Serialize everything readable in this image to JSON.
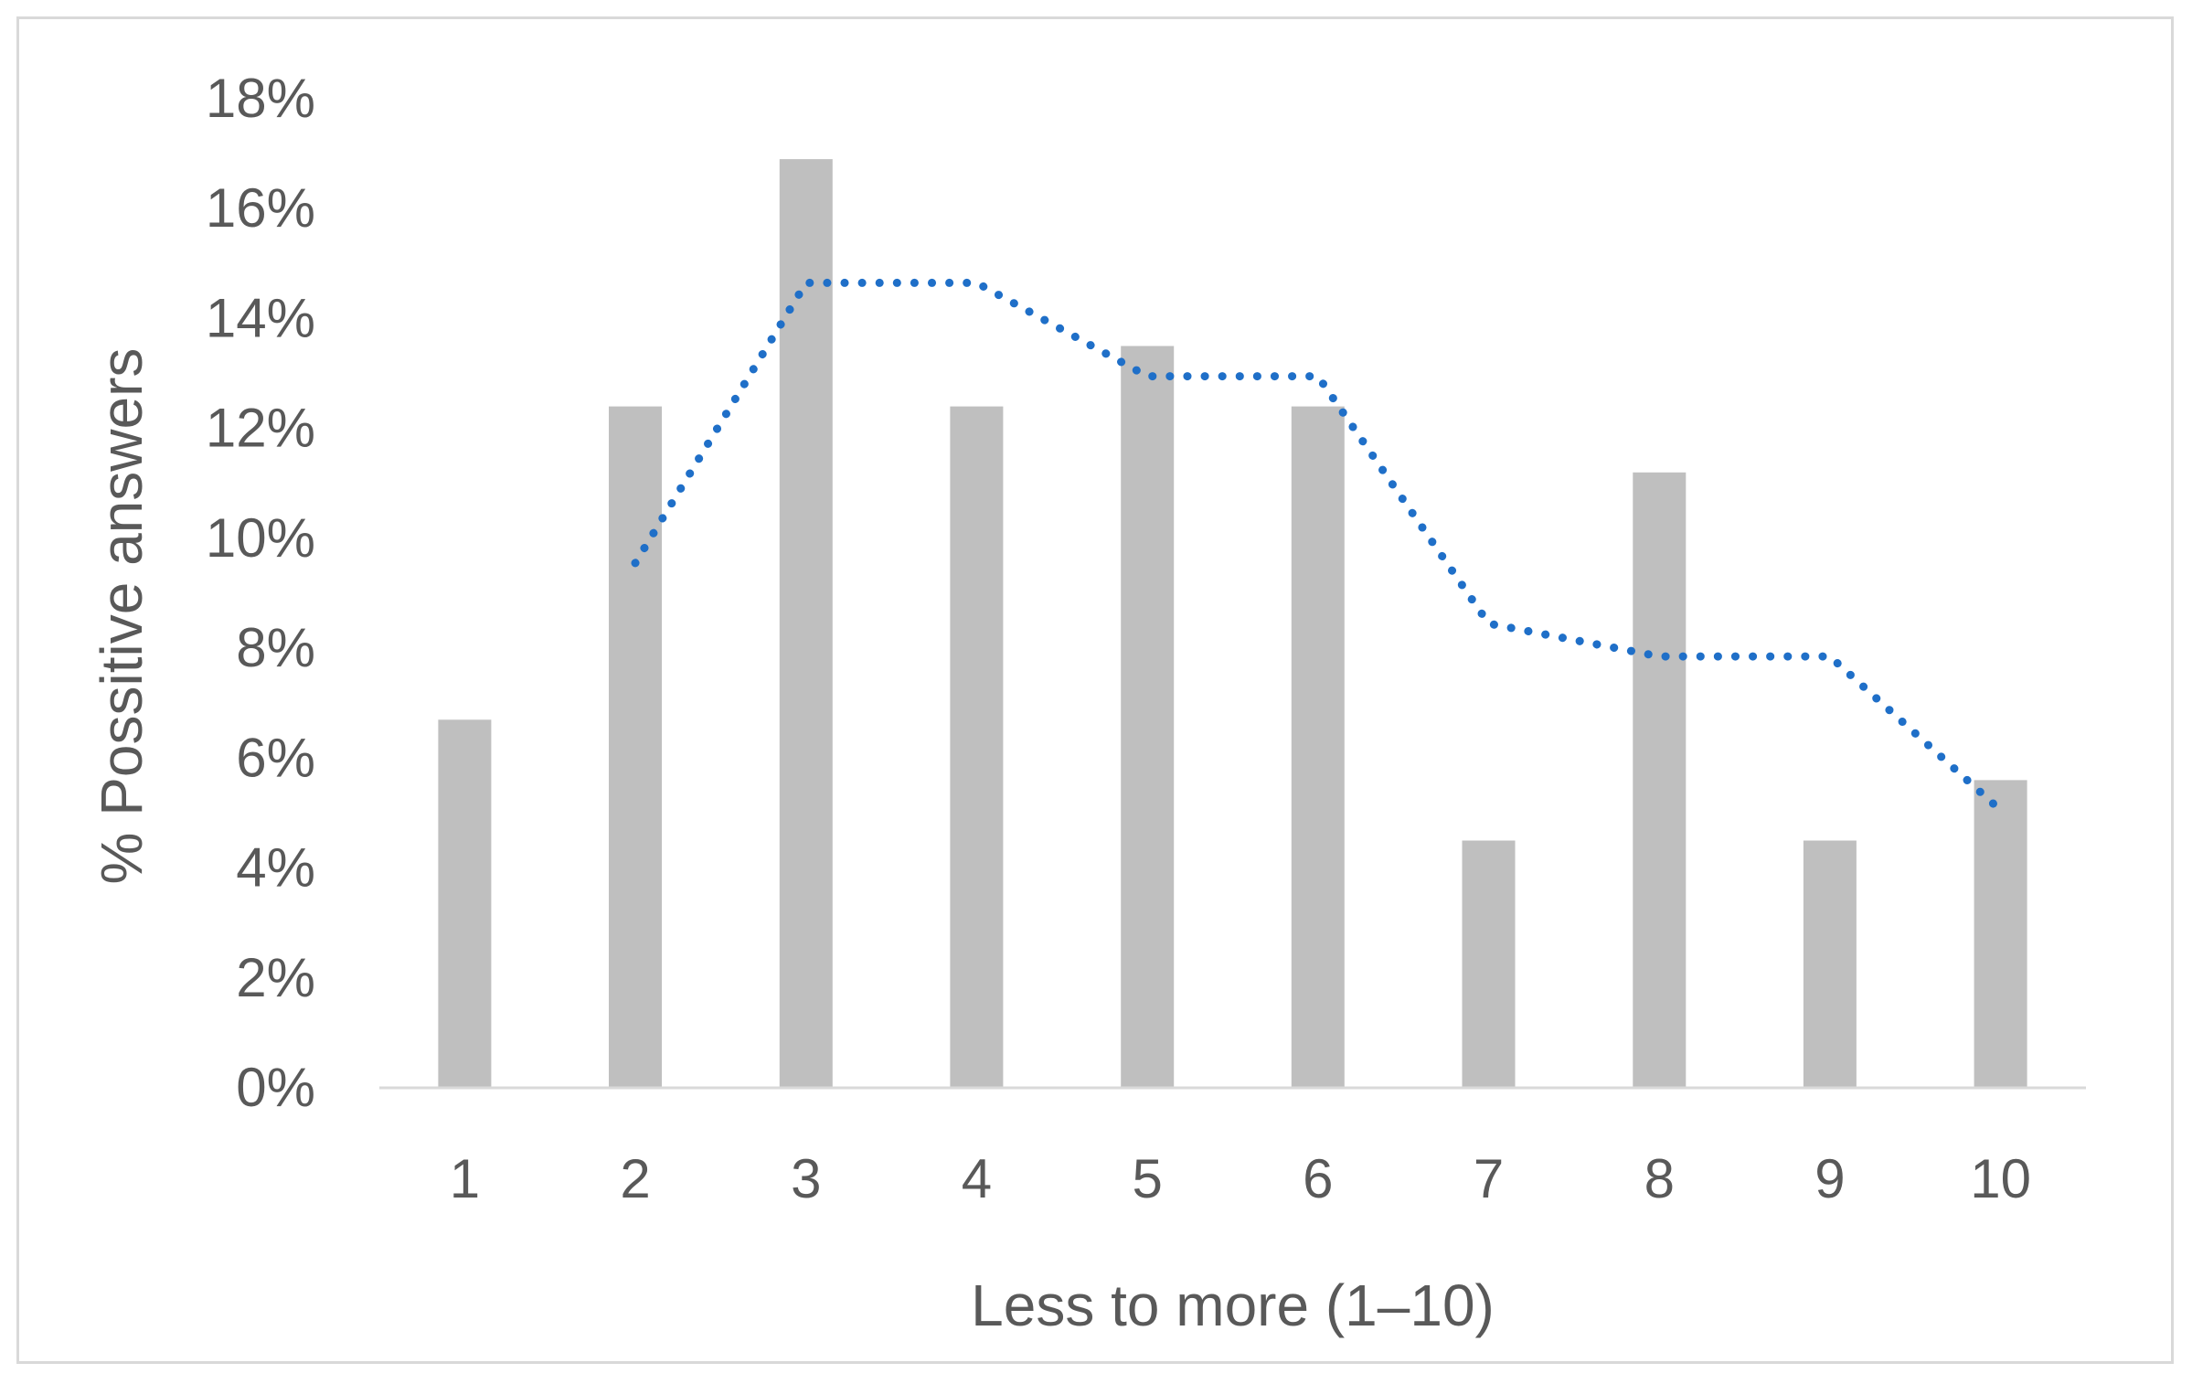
{
  "chart_data": {
    "type": "bar",
    "title": "",
    "xlabel": "Less to more (1–10)",
    "ylabel": "% Possitive answers",
    "categories": [
      "1",
      "2",
      "3",
      "4",
      "5",
      "6",
      "7",
      "8",
      "9",
      "10"
    ],
    "values": [
      6.7,
      12.4,
      16.9,
      12.4,
      13.5,
      12.4,
      4.5,
      11.2,
      4.5,
      5.6
    ],
    "ylim": [
      0,
      18
    ],
    "yticks": [
      0,
      2,
      4,
      6,
      8,
      10,
      12,
      14,
      16,
      18
    ],
    "ytick_labels": [
      "0%",
      "2%",
      "4%",
      "6%",
      "8%",
      "10%",
      "12%",
      "14%",
      "16%",
      "18%"
    ],
    "trendline": {
      "type": "moving-average",
      "period": 2,
      "x": [
        "2",
        "3",
        "4",
        "5",
        "6",
        "7",
        "8",
        "9",
        "10"
      ],
      "values": [
        9.55,
        14.65,
        14.65,
        12.95,
        12.95,
        8.45,
        7.85,
        7.85,
        5.05
      ]
    },
    "grid": false,
    "legend": "none",
    "colors": {
      "bars": "#bfbfbf",
      "trendline": "#1f6fc8",
      "axis": "#d9d9d9",
      "text": "#595959"
    }
  }
}
